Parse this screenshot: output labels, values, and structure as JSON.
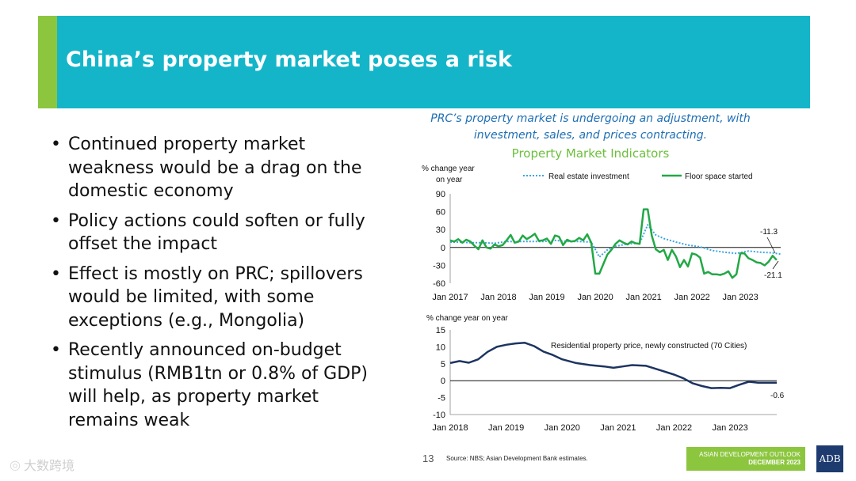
{
  "header": {
    "title": "China’s property market poses a risk"
  },
  "bullets": [
    "Continued property market weakness would be a drag on the domestic economy",
    "Policy actions could soften or fully offset the impact",
    "Effect is mostly on PRC; spillovers would be limited, with some exceptions (e.g., Mongolia)",
    "Recently announced on-budget stimulus (RMB1tn or 0.8% of GDP) will help, as property market remains weak"
  ],
  "chart_section": {
    "caption_line1": "PRC’s property market is undergoing an adjustment, with",
    "caption_line2": "investment, sales, and prices contracting.",
    "subtitle": "Property Market Indicators"
  },
  "colors": {
    "banner": "#14b5c9",
    "accent": "#8cc63f",
    "investment": "#3aa7e0",
    "floor_space": "#22a845",
    "price": "#1d3461",
    "caption": "#1f6fb5"
  },
  "chart_data": [
    {
      "type": "line",
      "ylabel_line1": "% change year",
      "ylabel_line2": "on year",
      "ylim": [
        -60,
        90
      ],
      "yticks": [
        90,
        60,
        30,
        0,
        -30,
        -60
      ],
      "xlim": [
        "2017-01",
        "2023-11"
      ],
      "xticks": [
        "Jan 2017",
        "Jan 2018",
        "Jan 2019",
        "Jan 2020",
        "Jan 2021",
        "Jan 2022",
        "Jan 2023"
      ],
      "legend_position": "top",
      "series": [
        {
          "name": "Real estate investment",
          "style": "dotted",
          "points": [
            [
              "2017-01",
              9
            ],
            [
              "2017-03",
              9
            ],
            [
              "2017-06",
              8
            ],
            [
              "2017-09",
              8
            ],
            [
              "2017-12",
              7
            ],
            [
              "2018-03",
              10
            ],
            [
              "2018-06",
              10
            ],
            [
              "2018-09",
              10
            ],
            [
              "2018-12",
              10
            ],
            [
              "2019-03",
              12
            ],
            [
              "2019-06",
              10
            ],
            [
              "2019-09",
              10
            ],
            [
              "2019-12",
              9
            ],
            [
              "2020-02",
              -16
            ],
            [
              "2020-04",
              -4
            ],
            [
              "2020-06",
              2
            ],
            [
              "2020-09",
              6
            ],
            [
              "2020-12",
              7
            ],
            [
              "2021-02",
              38
            ],
            [
              "2021-04",
              21
            ],
            [
              "2021-06",
              15
            ],
            [
              "2021-09",
              9
            ],
            [
              "2021-12",
              4
            ],
            [
              "2022-03",
              1
            ],
            [
              "2022-06",
              -5
            ],
            [
              "2022-09",
              -8
            ],
            [
              "2022-12",
              -10
            ],
            [
              "2023-03",
              -6
            ],
            [
              "2023-06",
              -8
            ],
            [
              "2023-09",
              -9
            ],
            [
              "2023-11",
              -11.3
            ]
          ]
        },
        {
          "name": "Floor space started",
          "style": "solid",
          "points": [
            [
              "2017-01",
              12
            ],
            [
              "2017-02",
              10
            ],
            [
              "2017-03",
              14
            ],
            [
              "2017-04",
              8
            ],
            [
              "2017-05",
              13
            ],
            [
              "2017-06",
              10
            ],
            [
              "2017-07",
              3
            ],
            [
              "2017-08",
              -3
            ],
            [
              "2017-09",
              12
            ],
            [
              "2017-10",
              0
            ],
            [
              "2017-11",
              -2
            ],
            [
              "2017-12",
              5
            ],
            [
              "2018-01",
              2
            ],
            [
              "2018-02",
              4
            ],
            [
              "2018-03",
              12
            ],
            [
              "2018-04",
              21
            ],
            [
              "2018-05",
              8
            ],
            [
              "2018-06",
              10
            ],
            [
              "2018-07",
              20
            ],
            [
              "2018-08",
              14
            ],
            [
              "2018-09",
              18
            ],
            [
              "2018-10",
              23
            ],
            [
              "2018-11",
              11
            ],
            [
              "2018-12",
              12
            ],
            [
              "2019-01",
              15
            ],
            [
              "2019-02",
              6
            ],
            [
              "2019-03",
              20
            ],
            [
              "2019-04",
              18
            ],
            [
              "2019-05",
              4
            ],
            [
              "2019-06",
              13
            ],
            [
              "2019-07",
              10
            ],
            [
              "2019-08",
              11
            ],
            [
              "2019-09",
              16
            ],
            [
              "2019-10",
              12
            ],
            [
              "2019-11",
              22
            ],
            [
              "2019-12",
              8
            ],
            [
              "2020-01",
              -44
            ],
            [
              "2020-02",
              -44
            ],
            [
              "2020-03",
              -28
            ],
            [
              "2020-04",
              -12
            ],
            [
              "2020-05",
              -4
            ],
            [
              "2020-06",
              6
            ],
            [
              "2020-07",
              12
            ],
            [
              "2020-08",
              8
            ],
            [
              "2020-09",
              5
            ],
            [
              "2020-10",
              10
            ],
            [
              "2020-11",
              7
            ],
            [
              "2020-12",
              6
            ],
            [
              "2021-01",
              64
            ],
            [
              "2021-02",
              64
            ],
            [
              "2021-03",
              20
            ],
            [
              "2021-04",
              -3
            ],
            [
              "2021-05",
              -8
            ],
            [
              "2021-06",
              -4
            ],
            [
              "2021-07",
              -21
            ],
            [
              "2021-08",
              -4
            ],
            [
              "2021-09",
              -15
            ],
            [
              "2021-10",
              -33
            ],
            [
              "2021-11",
              -21
            ],
            [
              "2021-12",
              -32
            ],
            [
              "2022-01",
              -10
            ],
            [
              "2022-02",
              -12
            ],
            [
              "2022-03",
              -17
            ],
            [
              "2022-04",
              -44
            ],
            [
              "2022-05",
              -41
            ],
            [
              "2022-06",
              -45
            ],
            [
              "2022-07",
              -45
            ],
            [
              "2022-08",
              -46
            ],
            [
              "2022-09",
              -44
            ],
            [
              "2022-10",
              -40
            ],
            [
              "2022-11",
              -51
            ],
            [
              "2022-12",
              -45
            ],
            [
              "2023-01",
              -10
            ],
            [
              "2023-02",
              -10
            ],
            [
              "2023-03",
              -18
            ],
            [
              "2023-04",
              -21
            ],
            [
              "2023-05",
              -25
            ],
            [
              "2023-06",
              -26
            ],
            [
              "2023-07",
              -30
            ],
            [
              "2023-08",
              -24
            ],
            [
              "2023-09",
              -14
            ],
            [
              "2023-10",
              -21.1
            ]
          ]
        }
      ],
      "annotations": [
        {
          "text": "-11.3",
          "series": "Real estate investment"
        },
        {
          "text": "-21.1",
          "series": "Floor space started"
        }
      ]
    },
    {
      "type": "line",
      "ylabel": "% change year on year",
      "ylim": [
        -10,
        15
      ],
      "yticks": [
        15,
        10,
        5,
        0,
        -5,
        -10
      ],
      "xlim": [
        "2018-01",
        "2023-11"
      ],
      "xticks": [
        "Jan 2018",
        "Jan 2019",
        "Jan 2020",
        "Jan 2021",
        "Jan 2022",
        "Jan 2023"
      ],
      "series": [
        {
          "name": "Residential property price, newly constructed (70 Cities)",
          "style": "solid",
          "points": [
            [
              "2018-01",
              5.2
            ],
            [
              "2018-03",
              5.8
            ],
            [
              "2018-05",
              5.3
            ],
            [
              "2018-07",
              6.3
            ],
            [
              "2018-09",
              8.5
            ],
            [
              "2018-11",
              10.0
            ],
            [
              "2019-01",
              10.6
            ],
            [
              "2019-03",
              11.0
            ],
            [
              "2019-05",
              11.2
            ],
            [
              "2019-07",
              10.2
            ],
            [
              "2019-09",
              8.6
            ],
            [
              "2019-11",
              7.6
            ],
            [
              "2020-01",
              6.3
            ],
            [
              "2020-04",
              5.2
            ],
            [
              "2020-07",
              4.6
            ],
            [
              "2020-10",
              4.2
            ],
            [
              "2020-12",
              3.8
            ],
            [
              "2021-02",
              4.2
            ],
            [
              "2021-04",
              4.6
            ],
            [
              "2021-07",
              4.4
            ],
            [
              "2021-10",
              3.1
            ],
            [
              "2022-01",
              1.8
            ],
            [
              "2022-03",
              0.7
            ],
            [
              "2022-05",
              -0.8
            ],
            [
              "2022-07",
              -1.6
            ],
            [
              "2022-09",
              -2.2
            ],
            [
              "2022-11",
              -2.1
            ],
            [
              "2023-01",
              -2.2
            ],
            [
              "2023-03",
              -1.2
            ],
            [
              "2023-05",
              -0.3
            ],
            [
              "2023-07",
              -0.6
            ],
            [
              "2023-09",
              -0.6
            ],
            [
              "2023-11",
              -0.6
            ]
          ]
        }
      ],
      "annotations": [
        {
          "text": "-0.6",
          "series": "Residential property price, newly constructed (70 Cities)"
        }
      ]
    }
  ],
  "footer": {
    "page_number": "13",
    "source": "Source: NBS; Asian Development Bank estimates.",
    "badge_line1": "ASIAN DEVELOPMENT OUTLOOK",
    "badge_line2": "DECEMBER 2023",
    "logo": "ADB"
  },
  "watermark": {
    "text": "大数跨境",
    "icon": "watermark-logo-icon"
  }
}
